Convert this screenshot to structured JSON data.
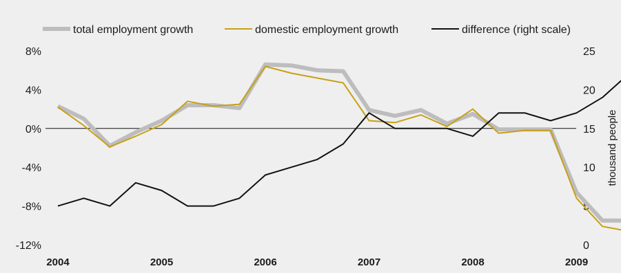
{
  "chart_data": {
    "type": "line",
    "x_ticks": [
      "2004",
      "2005",
      "2006",
      "2007",
      "2008",
      "2009"
    ],
    "quarters_per_year": 4,
    "y_left": {
      "range": [
        -12,
        8
      ],
      "ticks": [
        8,
        4,
        0,
        -4,
        -8,
        -12
      ],
      "tick_labels": [
        "8%",
        "4%",
        "0%",
        "-4%",
        "-8%",
        "-12%"
      ]
    },
    "y_right": {
      "label": "thousand people",
      "range": [
        0,
        25
      ],
      "ticks": [
        25,
        20,
        15,
        10,
        5,
        0
      ],
      "tick_labels": [
        "25",
        "20",
        "15",
        "10",
        "5",
        "0"
      ]
    },
    "legend_position": "top",
    "series": [
      {
        "name": "total employment growth",
        "axis": "left",
        "color": "#bdbdbd",
        "values": [
          2.3,
          1.0,
          -1.8,
          -0.4,
          0.8,
          2.4,
          2.4,
          2.1,
          6.6,
          6.5,
          6.0,
          5.9,
          1.9,
          1.3,
          1.9,
          0.5,
          1.5,
          -0.1,
          -0.1,
          -0.1,
          -6.6,
          -9.5,
          -9.5
        ]
      },
      {
        "name": "domestic employment growth",
        "axis": "left",
        "color": "#c8a014",
        "values": [
          2.2,
          0.3,
          -1.9,
          -0.8,
          0.4,
          2.8,
          2.3,
          2.5,
          6.4,
          5.7,
          5.2,
          4.7,
          0.8,
          0.6,
          1.4,
          0.2,
          2.0,
          -0.5,
          -0.2,
          -0.2,
          -7.2,
          -10.1,
          -10.6
        ]
      },
      {
        "name": "difference (right scale)",
        "axis": "right",
        "color": "#111111",
        "values": [
          5,
          6,
          5,
          8,
          7,
          5,
          5,
          6,
          9,
          10,
          11,
          13,
          17,
          15,
          15,
          15,
          14,
          17,
          17,
          16,
          17,
          19,
          22
        ]
      }
    ],
    "grid": false,
    "zero_line": true
  }
}
